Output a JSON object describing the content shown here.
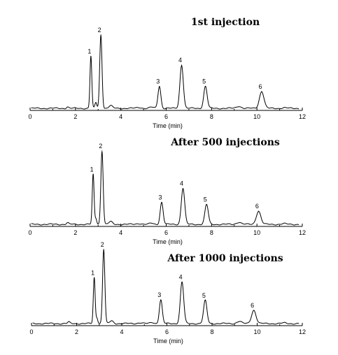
{
  "chart_data": [
    {
      "type": "line",
      "title": "1st injection",
      "xlabel": "Time (min)",
      "xlim": [
        0,
        12
      ],
      "xticks": [
        0,
        2,
        4,
        6,
        8,
        10,
        12
      ],
      "x_tick_labels": [
        "0",
        "2",
        "4",
        "6",
        "8",
        "10",
        "12"
      ],
      "grid": false,
      "peaks": [
        {
          "label": "1",
          "rt": 2.68,
          "height": 0.71
        },
        {
          "label": "2",
          "rt": 3.12,
          "height": 1.0
        },
        {
          "label": "3",
          "rt": 5.7,
          "height": 0.3
        },
        {
          "label": "4",
          "rt": 6.68,
          "height": 0.59
        },
        {
          "label": "5",
          "rt": 7.73,
          "height": 0.3
        },
        {
          "label": "6",
          "rt": 10.21,
          "height": 0.23
        }
      ]
    },
    {
      "type": "line",
      "title": "After 500 injections",
      "xlabel": "Time (min)",
      "xlim": [
        0,
        12
      ],
      "xticks": [
        0,
        2,
        4,
        6,
        8,
        10,
        12
      ],
      "x_tick_labels": [
        "0",
        "2",
        "4",
        "6",
        "8",
        "10",
        "12"
      ],
      "grid": false,
      "peaks": [
        {
          "label": "1",
          "rt": 2.78,
          "height": 0.68
        },
        {
          "label": "2",
          "rt": 3.17,
          "height": 1.0
        },
        {
          "label": "3",
          "rt": 5.8,
          "height": 0.3
        },
        {
          "label": "4",
          "rt": 6.74,
          "height": 0.49
        },
        {
          "label": "5",
          "rt": 7.78,
          "height": 0.27
        },
        {
          "label": "6",
          "rt": 10.07,
          "height": 0.18
        }
      ]
    },
    {
      "type": "line",
      "title": "After 1000 injections",
      "xlabel": "Time (min)",
      "xlim": [
        0,
        12
      ],
      "xticks": [
        0,
        2,
        4,
        6,
        8,
        10,
        12
      ],
      "x_tick_labels": [
        "0",
        "2",
        "4",
        "6",
        "8",
        "10",
        "12"
      ],
      "grid": false,
      "peaks": [
        {
          "label": "1",
          "rt": 2.78,
          "height": 0.62
        },
        {
          "label": "2",
          "rt": 3.2,
          "height": 1.0
        },
        {
          "label": "3",
          "rt": 5.73,
          "height": 0.32
        },
        {
          "label": "4",
          "rt": 6.67,
          "height": 0.56
        },
        {
          "label": "5",
          "rt": 7.7,
          "height": 0.31
        },
        {
          "label": "6",
          "rt": 9.85,
          "height": 0.18
        }
      ]
    }
  ]
}
